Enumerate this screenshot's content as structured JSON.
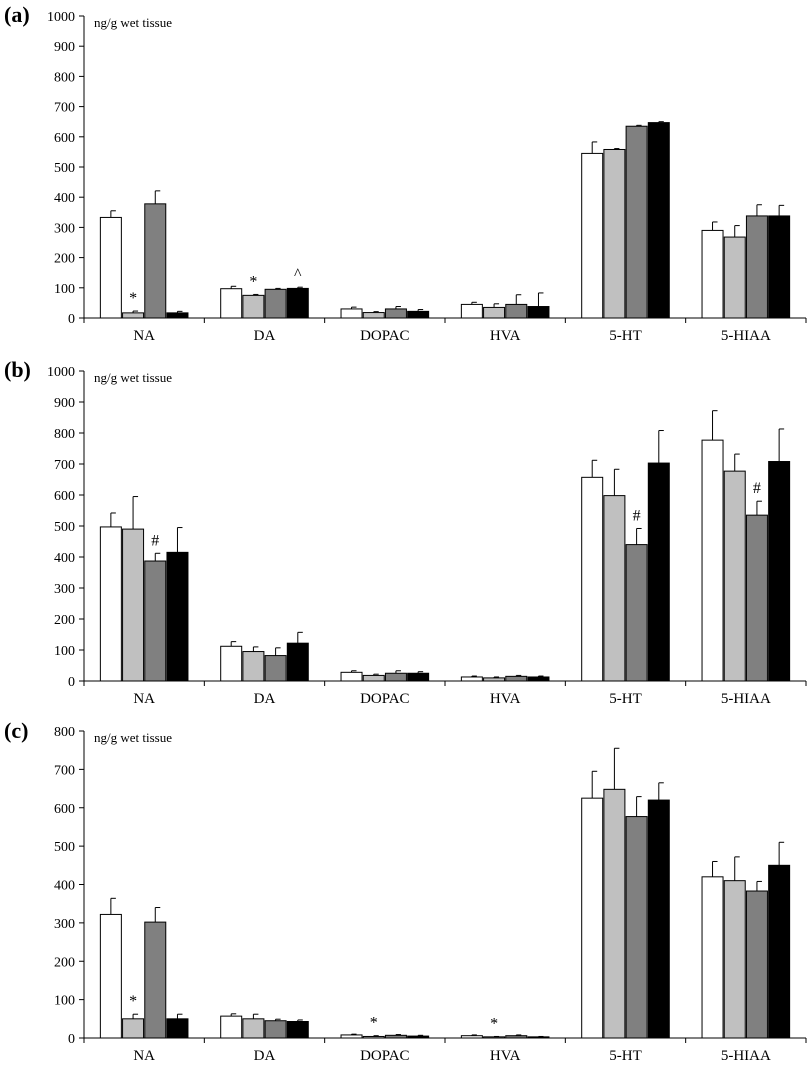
{
  "chart_data": [
    {
      "type": "bar",
      "panel": "(a)",
      "unit_label": "ng/g wet tissue",
      "ylim": [
        0,
        1000
      ],
      "yticks": [
        0,
        100,
        200,
        300,
        400,
        500,
        600,
        700,
        800,
        900,
        1000
      ],
      "categories": [
        "NA",
        "DA",
        "DOPAC",
        "HVA",
        "5-HT",
        "5-HIAA"
      ],
      "series_colors": [
        "#ffffff",
        "#c0c0c0",
        "#808080",
        "#000000"
      ],
      "series": [
        {
          "values": [
            333,
            97,
            30,
            45,
            545,
            290
          ],
          "errors": [
            22,
            8,
            6,
            7,
            38,
            28
          ]
        },
        {
          "values": [
            17,
            75,
            18,
            35,
            558,
            268
          ],
          "errors": [
            6,
            3,
            3,
            12,
            3,
            38
          ]
        },
        {
          "values": [
            378,
            95,
            30,
            45,
            635,
            338
          ],
          "errors": [
            43,
            3,
            8,
            32,
            3,
            37
          ]
        },
        {
          "values": [
            17,
            98,
            22,
            38,
            647,
            338
          ],
          "errors": [
            5,
            4,
            6,
            45,
            3,
            35
          ]
        }
      ],
      "annotations": [
        {
          "category": "NA",
          "series": 1,
          "text": "*"
        },
        {
          "category": "DA",
          "series": 1,
          "text": "*"
        },
        {
          "category": "DA",
          "series": 3,
          "text": "^"
        }
      ]
    },
    {
      "type": "bar",
      "panel": "(b)",
      "unit_label": "ng/g wet tissue",
      "ylim": [
        0,
        1000
      ],
      "yticks": [
        0,
        100,
        200,
        300,
        400,
        500,
        600,
        700,
        800,
        900,
        1000
      ],
      "categories": [
        "NA",
        "DA",
        "DOPAC",
        "HVA",
        "5-HT",
        "5-HIAA"
      ],
      "series_colors": [
        "#ffffff",
        "#c0c0c0",
        "#808080",
        "#000000"
      ],
      "series": [
        {
          "values": [
            497,
            112,
            28,
            13,
            657,
            777
          ],
          "errors": [
            45,
            15,
            5,
            3,
            55,
            95
          ]
        },
        {
          "values": [
            490,
            95,
            18,
            10,
            598,
            677
          ],
          "errors": [
            105,
            15,
            4,
            3,
            85,
            55
          ]
        },
        {
          "values": [
            387,
            82,
            25,
            15,
            440,
            535
          ],
          "errors": [
            25,
            25,
            8,
            3,
            52,
            45
          ]
        },
        {
          "values": [
            415,
            122,
            25,
            13,
            703,
            708
          ],
          "errors": [
            80,
            35,
            5,
            3,
            105,
            105
          ]
        }
      ],
      "annotations": [
        {
          "category": "NA",
          "series": 2,
          "text": "#"
        },
        {
          "category": "5-HT",
          "series": 2,
          "text": "#"
        },
        {
          "category": "5-HIAA",
          "series": 2,
          "text": "#"
        }
      ]
    },
    {
      "type": "bar",
      "panel": "(c)",
      "unit_label": "ng/g wet tissue",
      "ylim": [
        0,
        800
      ],
      "yticks": [
        0,
        100,
        200,
        300,
        400,
        500,
        600,
        700,
        800
      ],
      "categories": [
        "NA",
        "DA",
        "DOPAC",
        "HVA",
        "5-HT",
        "5-HIAA"
      ],
      "series_colors": [
        "#ffffff",
        "#c0c0c0",
        "#808080",
        "#000000"
      ],
      "series": [
        {
          "values": [
            322,
            57,
            8,
            6,
            625,
            420
          ],
          "errors": [
            42,
            6,
            2,
            2,
            70,
            40
          ]
        },
        {
          "values": [
            50,
            50,
            4,
            3,
            648,
            410
          ],
          "errors": [
            12,
            12,
            2,
            1,
            107,
            62
          ]
        },
        {
          "values": [
            302,
            45,
            7,
            6,
            577,
            383
          ],
          "errors": [
            38,
            4,
            2,
            2,
            52,
            25
          ]
        },
        {
          "values": [
            50,
            43,
            5,
            3,
            620,
            450
          ],
          "errors": [
            12,
            4,
            2,
            1,
            45,
            60
          ]
        }
      ],
      "annotations": [
        {
          "category": "NA",
          "series": 1,
          "text": "*"
        },
        {
          "category": "DOPAC",
          "series": 1,
          "text": "*"
        },
        {
          "category": "HVA",
          "series": 1,
          "text": "*"
        }
      ]
    }
  ]
}
